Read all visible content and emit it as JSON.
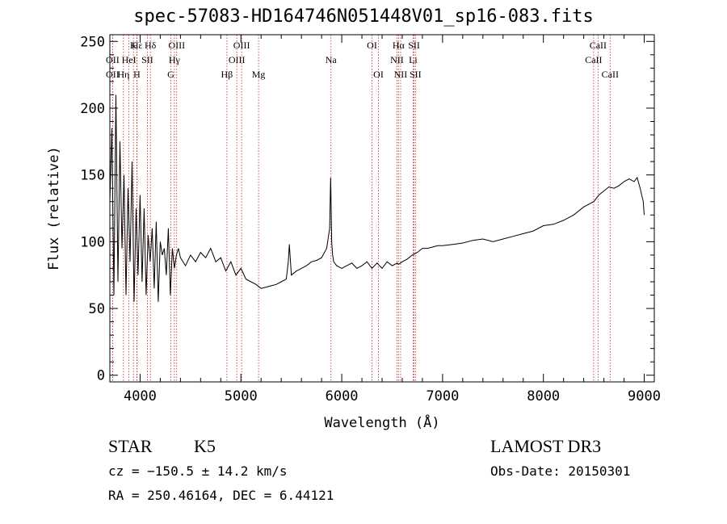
{
  "title": "spec-57083-HD164746N051448V01_sp16-083.fits",
  "info": {
    "class": "STAR",
    "subclass": "K5",
    "survey": "LAMOST DR3",
    "cz": "cz = −150.5 ± 14.2 km/s",
    "obs_date": "Obs-Date: 20150301",
    "radec": "RA = 250.46164, DEC =   6.44121"
  },
  "chart_data": {
    "type": "line",
    "xlabel": "Wavelength (Å)",
    "ylabel": "Flux (relative)",
    "xlim": [
      3700,
      9100
    ],
    "ylim": [
      -5,
      255
    ],
    "x_ticks": [
      4000,
      5000,
      6000,
      7000,
      8000,
      9000
    ],
    "y_ticks": [
      0,
      50,
      100,
      150,
      200,
      250
    ],
    "grid": false,
    "line_color": "#000000",
    "marker_color": "#cc2222",
    "series": [
      {
        "x": [
          3700,
          3720,
          3740,
          3760,
          3780,
          3800,
          3820,
          3840,
          3860,
          3880,
          3900,
          3920,
          3940,
          3960,
          3980,
          4000,
          4020,
          4040,
          4060,
          4080,
          4100,
          4120,
          4140,
          4160,
          4180,
          4200,
          4220,
          4240,
          4260,
          4280,
          4300,
          4320,
          4340,
          4360,
          4380,
          4400,
          4450,
          4500,
          4550,
          4600,
          4650,
          4700,
          4750,
          4800,
          4850,
          4900,
          4950,
          5000,
          5050,
          5100,
          5150,
          5200,
          5250,
          5300,
          5350,
          5400,
          5450,
          5470,
          5480,
          5500,
          5550,
          5600,
          5650,
          5700,
          5750,
          5800,
          5850,
          5880,
          5890,
          5895,
          5900,
          5910,
          5920,
          5950,
          6000,
          6050,
          6100,
          6150,
          6200,
          6250,
          6300,
          6350,
          6400,
          6450,
          6500,
          6550,
          6563,
          6600,
          6650,
          6700,
          6750,
          6800,
          6850,
          6900,
          6950,
          7000,
          7100,
          7200,
          7300,
          7400,
          7500,
          7600,
          7700,
          7800,
          7900,
          8000,
          8100,
          8200,
          8300,
          8400,
          8500,
          8550,
          8600,
          8650,
          8700,
          8750,
          8800,
          8850,
          8900,
          8930,
          8960,
          8990,
          9000
        ],
        "y": [
          130,
          185,
          60,
          210,
          70,
          175,
          95,
          150,
          60,
          140,
          85,
          160,
          55,
          125,
          75,
          135,
          70,
          125,
          60,
          105,
          85,
          110,
          65,
          115,
          55,
          100,
          90,
          95,
          75,
          110,
          60,
          95,
          80,
          90,
          95,
          88,
          82,
          90,
          85,
          92,
          88,
          95,
          85,
          88,
          78,
          85,
          75,
          80,
          72,
          70,
          68,
          65,
          66,
          67,
          68,
          70,
          72,
          85,
          98,
          75,
          78,
          80,
          82,
          85,
          86,
          88,
          95,
          110,
          148,
          125,
          100,
          90,
          85,
          82,
          80,
          82,
          84,
          80,
          82,
          85,
          80,
          84,
          80,
          85,
          82,
          84,
          83,
          85,
          87,
          90,
          92,
          95,
          95,
          96,
          97,
          97,
          98,
          99,
          101,
          102,
          100,
          102,
          104,
          106,
          108,
          112,
          113,
          116,
          120,
          126,
          130,
          135,
          138,
          141,
          140,
          142,
          145,
          147,
          145,
          148,
          140,
          130,
          120
        ]
      }
    ],
    "lines": [
      {
        "name": "Hε",
        "x": 3970,
        "row": 0
      },
      {
        "name": "K",
        "x": 3934,
        "row": 0
      },
      {
        "name": "Hδ",
        "x": 4102,
        "row": 0
      },
      {
        "name": "OII",
        "x": 3727,
        "row": 1
      },
      {
        "name": "HeI",
        "x": 3889,
        "row": 1
      },
      {
        "name": "SII",
        "x": 4072,
        "row": 1
      },
      {
        "name": "OII",
        "x": 3727,
        "row": 2
      },
      {
        "name": "Hη",
        "x": 3835,
        "row": 2
      },
      {
        "name": "H",
        "x": 3968,
        "row": 2
      },
      {
        "name": "OIII",
        "x": 4363,
        "row": 0
      },
      {
        "name": "Hγ",
        "x": 4340,
        "row": 1
      },
      {
        "name": "G",
        "x": 4305,
        "row": 2
      },
      {
        "name": "OIII",
        "x": 5007,
        "row": 0
      },
      {
        "name": "OIII",
        "x": 4959,
        "row": 1
      },
      {
        "name": "Hβ",
        "x": 4861,
        "row": 2
      },
      {
        "name": "Mg",
        "x": 5175,
        "row": 2
      },
      {
        "name": "Na",
        "x": 5893,
        "row": 1
      },
      {
        "name": "OI",
        "x": 6300,
        "row": 0
      },
      {
        "name": "OI",
        "x": 6364,
        "row": 2
      },
      {
        "name": "Hα",
        "x": 6563,
        "row": 0
      },
      {
        "name": "SII",
        "x": 6717,
        "row": 0
      },
      {
        "name": "NII",
        "x": 6548,
        "row": 1
      },
      {
        "name": "Li",
        "x": 6708,
        "row": 1
      },
      {
        "name": "NII",
        "x": 6584,
        "row": 2
      },
      {
        "name": "SII",
        "x": 6731,
        "row": 2
      },
      {
        "name": "CaII",
        "x": 8542,
        "row": 0
      },
      {
        "name": "CaII",
        "x": 8498,
        "row": 1
      },
      {
        "name": "CaII",
        "x": 8662,
        "row": 2
      }
    ]
  }
}
